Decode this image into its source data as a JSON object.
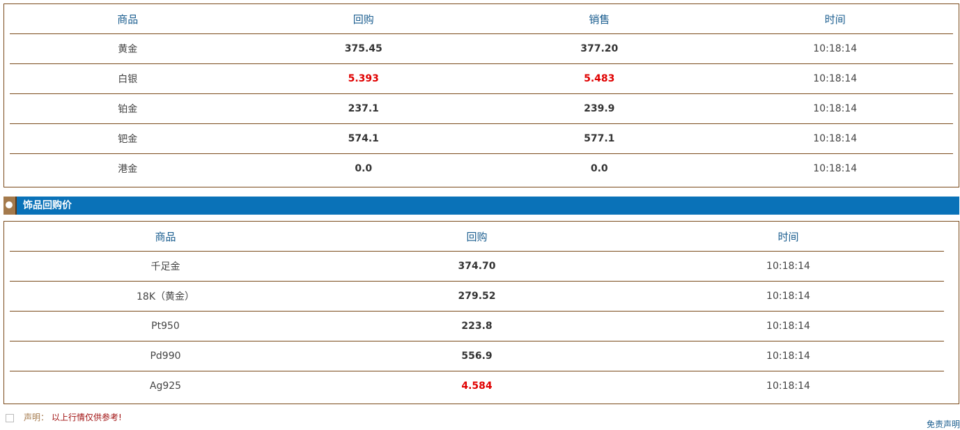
{
  "price_table": {
    "columns": [
      "商品",
      "回购",
      "销售",
      "时间"
    ],
    "rows": [
      [
        "黄金",
        "375.45",
        "377.20",
        "10:18:14"
      ],
      [
        "白银",
        {
          "text": "5.393",
          "color": "#e00000"
        },
        {
          "text": "5.483",
          "color": "#e00000"
        },
        "10:18:14"
      ],
      [
        "铂金",
        "237.1",
        "239.9",
        "10:18:14"
      ],
      [
        "钯金",
        "574.1",
        "577.1",
        "10:18:14"
      ],
      [
        "港金",
        "0.0",
        "0.0",
        "10:18:14"
      ]
    ]
  },
  "section": {
    "title": "饰品回购价"
  },
  "jewelry_table": {
    "columns": [
      "商品",
      "回购",
      "时间"
    ],
    "rows": [
      [
        "千足金",
        "374.70",
        "10:18:14"
      ],
      [
        "18K（黄金）",
        "279.52",
        "10:18:14"
      ],
      [
        "Pt950",
        "223.8",
        "10:18:14"
      ],
      [
        "Pd990",
        "556.9",
        "10:18:14"
      ],
      [
        "Ag925",
        {
          "text": "4.584",
          "color": "#e00000"
        },
        "10:18:14"
      ]
    ]
  },
  "footer": {
    "label": "声明：",
    "text": "以上行情仅供参考!",
    "link": "免责声明"
  }
}
